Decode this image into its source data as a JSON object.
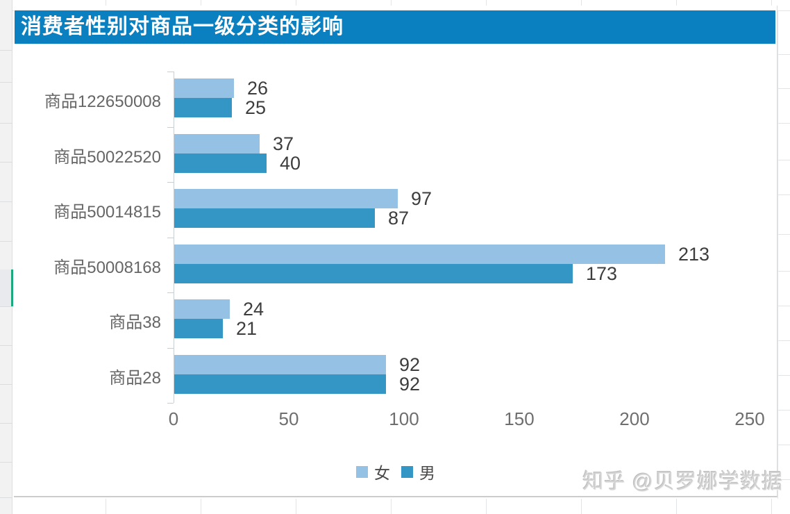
{
  "watermark": "知乎 @贝罗娜学数据",
  "spreadsheet": {
    "selection_color": "#1aa87c"
  },
  "chart_data": {
    "type": "bar",
    "orientation": "horizontal",
    "title": "消费者性别对商品一级分类的影响",
    "title_bg": "#0a80c1",
    "title_color": "#ffffff",
    "categories": [
      "商品122650008",
      "商品50022520",
      "商品50014815",
      "商品50008168",
      "商品38",
      "商品28"
    ],
    "series": [
      {
        "name": "女",
        "color": "#94c1e4",
        "values": [
          26,
          37,
          97,
          213,
          24,
          92
        ]
      },
      {
        "name": "男",
        "color": "#3496c4",
        "values": [
          25,
          40,
          87,
          173,
          21,
          92
        ]
      }
    ],
    "xlabel": "",
    "ylabel": "",
    "xlim": [
      0,
      250
    ],
    "x_ticks": [
      0,
      50,
      100,
      150,
      200,
      250
    ],
    "data_labels": true,
    "grid": false,
    "legend_position": "bottom"
  }
}
